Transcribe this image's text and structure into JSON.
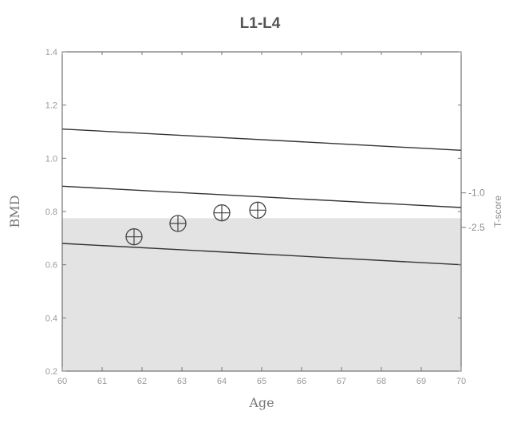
{
  "chart_data": {
    "type": "scatter",
    "title": "L1-L4",
    "xlabel": "Age",
    "ylabel": "BMD",
    "y2label": "T-score",
    "xlim": [
      60,
      70
    ],
    "ylim": [
      0.2,
      1.4
    ],
    "x_ticks": [
      "60",
      "61",
      "62",
      "63",
      "64",
      "65",
      "66",
      "67",
      "68",
      "69",
      "70"
    ],
    "y_ticks": [
      "0.2",
      "0.4",
      "0.6",
      "0.8",
      "1.0",
      "1.2",
      "1.4"
    ],
    "t_score_ticks": [
      {
        "label": "-1.0",
        "bmd": 0.87
      },
      {
        "label": "-2.5",
        "bmd": 0.74
      }
    ],
    "shaded_region": {
      "from": 0.2,
      "to": 0.775,
      "color": "#e3e3e3"
    },
    "reference_lines": [
      {
        "x": [
          60,
          70
        ],
        "y": [
          1.11,
          1.03
        ]
      },
      {
        "x": [
          60,
          70
        ],
        "y": [
          0.895,
          0.815
        ]
      },
      {
        "x": [
          60,
          70
        ],
        "y": [
          0.68,
          0.6
        ]
      }
    ],
    "points": [
      {
        "x": 61.8,
        "y": 0.705
      },
      {
        "x": 62.9,
        "y": 0.755
      },
      {
        "x": 64.0,
        "y": 0.795
      },
      {
        "x": 64.9,
        "y": 0.805
      }
    ]
  }
}
